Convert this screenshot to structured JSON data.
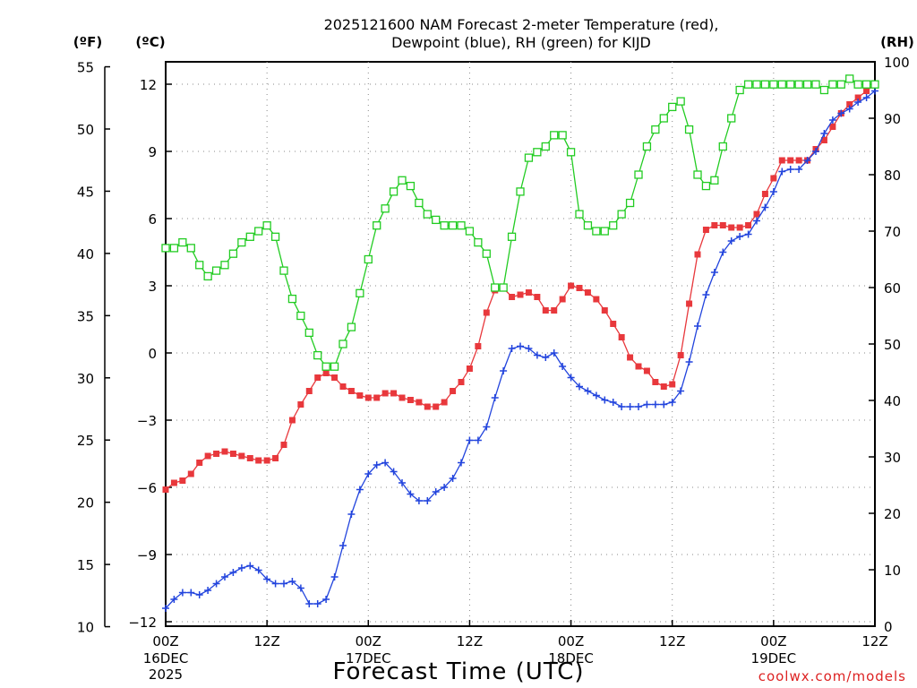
{
  "chart_data": {
    "type": "line",
    "title_line1": "2025121600 NAM Forecast 2-meter Temperature (red),",
    "title_line2": "Dewpoint (blue), RH (green) for KIJD",
    "xlabel": "Forecast Time (UTC)",
    "credit": "coolwx.com/models",
    "unit_left_f": "(ºF)",
    "unit_left_c": "(ºC)",
    "unit_right": "(RH)",
    "x_range_hours": [
      0,
      84
    ],
    "x_ticks": [
      {
        "hour": 0,
        "line1": "00Z",
        "line2": "16DEC",
        "line3": "2025"
      },
      {
        "hour": 12,
        "line1": "12Z",
        "line2": "",
        "line3": ""
      },
      {
        "hour": 24,
        "line1": "00Z",
        "line2": "17DEC",
        "line3": ""
      },
      {
        "hour": 36,
        "line1": "12Z",
        "line2": "",
        "line3": ""
      },
      {
        "hour": 48,
        "line1": "00Z",
        "line2": "18DEC",
        "line3": ""
      },
      {
        "hour": 60,
        "line1": "12Z",
        "line2": "",
        "line3": ""
      },
      {
        "hour": 72,
        "line1": "00Z",
        "line2": "19DEC",
        "line3": ""
      },
      {
        "hour": 84,
        "line1": "12Z",
        "line2": "",
        "line3": ""
      }
    ],
    "y_celsius": {
      "range": [
        -12.2,
        13.0
      ],
      "ticks": [
        "12",
        "9",
        "6",
        "3",
        "0",
        "−3",
        "−6",
        "−9",
        "−12"
      ],
      "tick_values": [
        12,
        9,
        6,
        3,
        0,
        -3,
        -6,
        -9,
        -12
      ]
    },
    "y_fahrenheit": {
      "ticks": [
        "55",
        "50",
        "45",
        "40",
        "35",
        "30",
        "25",
        "20",
        "15",
        "10"
      ],
      "tick_values": [
        55,
        50,
        45,
        40,
        35,
        30,
        25,
        20,
        15,
        10
      ]
    },
    "y_rh": {
      "range": [
        0,
        100
      ],
      "ticks": [
        "100",
        "90",
        "80",
        "70",
        "60",
        "50",
        "40",
        "30",
        "20",
        "10",
        "0"
      ],
      "tick_values": [
        100,
        90,
        80,
        70,
        60,
        50,
        40,
        30,
        20,
        10,
        0
      ]
    },
    "series": [
      {
        "name": "Temperature",
        "axis": "celsius",
        "color": "#e8383c",
        "marker": "filled-square",
        "hours": [
          0,
          1,
          2,
          3,
          4,
          5,
          6,
          7,
          8,
          9,
          10,
          11,
          12,
          13,
          14,
          15,
          16,
          17,
          18,
          19,
          20,
          21,
          22,
          23,
          24,
          25,
          26,
          27,
          28,
          29,
          30,
          31,
          32,
          33,
          34,
          35,
          36,
          37,
          38,
          39,
          40,
          41,
          42,
          43,
          44,
          45,
          46,
          47,
          48,
          49,
          50,
          51,
          52,
          53,
          54,
          55,
          56,
          57,
          58,
          59,
          60,
          61,
          62,
          63,
          64,
          65,
          66,
          67,
          68,
          69,
          70,
          71,
          72,
          73,
          74,
          75,
          76,
          77,
          78,
          79,
          80,
          81,
          82,
          83,
          84
        ],
        "values": [
          -6.1,
          -5.8,
          -5.7,
          -5.4,
          -4.9,
          -4.6,
          -4.5,
          -4.4,
          -4.5,
          -4.6,
          -4.7,
          -4.8,
          -4.8,
          -4.7,
          -4.1,
          -3.0,
          -2.3,
          -1.7,
          -1.1,
          -0.9,
          -1.1,
          -1.5,
          -1.7,
          -1.9,
          -2.0,
          -2.0,
          -1.8,
          -1.8,
          -2.0,
          -2.1,
          -2.2,
          -2.4,
          -2.4,
          -2.2,
          -1.7,
          -1.3,
          -0.7,
          0.3,
          1.8,
          2.8,
          2.9,
          2.5,
          2.6,
          2.7,
          2.5,
          1.9,
          1.9,
          2.4,
          3.0,
          2.9,
          2.7,
          2.4,
          1.9,
          1.3,
          0.7,
          -0.2,
          -0.6,
          -0.8,
          -1.3,
          -1.5,
          -1.4,
          -0.1,
          2.2,
          4.4,
          5.5,
          5.7,
          5.7,
          5.6,
          5.6,
          5.7,
          6.2,
          7.1,
          7.8,
          8.6,
          8.6,
          8.6,
          8.6,
          9.1,
          9.5,
          10.1,
          10.7,
          11.1,
          11.4,
          11.7,
          12.0
        ]
      },
      {
        "name": "Dewpoint",
        "axis": "celsius",
        "color": "#2244dd",
        "marker": "plus",
        "hours": [
          0,
          1,
          2,
          3,
          4,
          5,
          6,
          7,
          8,
          9,
          10,
          11,
          12,
          13,
          14,
          15,
          16,
          17,
          18,
          19,
          20,
          21,
          22,
          23,
          24,
          25,
          26,
          27,
          28,
          29,
          30,
          31,
          32,
          33,
          34,
          35,
          36,
          37,
          38,
          39,
          40,
          41,
          42,
          43,
          44,
          45,
          46,
          47,
          48,
          49,
          50,
          51,
          52,
          53,
          54,
          55,
          56,
          57,
          58,
          59,
          60,
          61,
          62,
          63,
          64,
          65,
          66,
          67,
          68,
          69,
          70,
          71,
          72,
          73,
          74,
          75,
          76,
          77,
          78,
          79,
          80,
          81,
          82,
          83,
          84
        ],
        "values": [
          -11.4,
          -11.0,
          -10.7,
          -10.7,
          -10.8,
          -10.6,
          -10.3,
          -10.0,
          -9.8,
          -9.6,
          -9.5,
          -9.7,
          -10.1,
          -10.3,
          -10.3,
          -10.2,
          -10.5,
          -11.2,
          -11.2,
          -11.0,
          -10.0,
          -8.6,
          -7.2,
          -6.1,
          -5.4,
          -5.0,
          -4.9,
          -5.3,
          -5.8,
          -6.3,
          -6.6,
          -6.6,
          -6.2,
          -6.0,
          -5.6,
          -4.9,
          -3.9,
          -3.9,
          -3.3,
          -2.0,
          -0.8,
          0.2,
          0.3,
          0.2,
          -0.1,
          -0.2,
          0.0,
          -0.6,
          -1.1,
          -1.5,
          -1.7,
          -1.9,
          -2.1,
          -2.2,
          -2.4,
          -2.4,
          -2.4,
          -2.3,
          -2.3,
          -2.3,
          -2.2,
          -1.7,
          -0.4,
          1.2,
          2.6,
          3.6,
          4.5,
          5.0,
          5.2,
          5.3,
          5.9,
          6.5,
          7.2,
          8.1,
          8.2,
          8.2,
          8.6,
          9.0,
          9.8,
          10.4,
          10.7,
          10.9,
          11.2,
          11.4,
          11.7
        ]
      },
      {
        "name": "RH",
        "axis": "rh",
        "color": "#22cc22",
        "marker": "hollow-square",
        "hours": [
          0,
          1,
          2,
          3,
          4,
          5,
          6,
          7,
          8,
          9,
          10,
          11,
          12,
          13,
          14,
          15,
          16,
          17,
          18,
          19,
          20,
          21,
          22,
          23,
          24,
          25,
          26,
          27,
          28,
          29,
          30,
          31,
          32,
          33,
          34,
          35,
          36,
          37,
          38,
          39,
          40,
          41,
          42,
          43,
          44,
          45,
          46,
          47,
          48,
          49,
          50,
          51,
          52,
          53,
          54,
          55,
          56,
          57,
          58,
          59,
          60,
          61,
          62,
          63,
          64,
          65,
          66,
          67,
          68,
          69,
          70,
          71,
          72,
          73,
          74,
          75,
          76,
          77,
          78,
          79,
          80,
          81,
          82,
          83,
          84
        ],
        "values": [
          67,
          67,
          68,
          67,
          64,
          62,
          63,
          64,
          66,
          68,
          69,
          70,
          71,
          69,
          63,
          58,
          55,
          52,
          48,
          46,
          46,
          50,
          53,
          59,
          65,
          71,
          74,
          77,
          79,
          78,
          75,
          73,
          72,
          71,
          71,
          71,
          70,
          68,
          66,
          60,
          60,
          69,
          77,
          83,
          84,
          85,
          87,
          87,
          84,
          73,
          71,
          70,
          70,
          71,
          73,
          75,
          80,
          85,
          88,
          90,
          92,
          93,
          88,
          80,
          78,
          79,
          85,
          90,
          95,
          96,
          96,
          96,
          96,
          96,
          96,
          96,
          96,
          96,
          95,
          96,
          96,
          97,
          96,
          96,
          96
        ]
      }
    ]
  }
}
